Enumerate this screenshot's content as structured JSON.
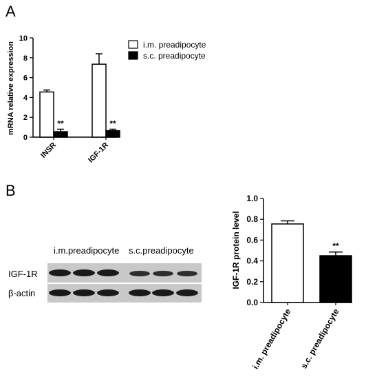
{
  "panels": {
    "a_label": "A",
    "b_label": "B"
  },
  "blot": {
    "lane_group_1": "i.m.preadipocyte",
    "lane_group_2": "s.c.preadipocyte",
    "row_1": "IGF-1R",
    "row_2": "β-actin"
  },
  "colors": {
    "im_fill": "#ffffff",
    "sc_fill": "#000000",
    "blot_bg": "#c8c8c8",
    "band": "#1a1a1a"
  },
  "chart_data": [
    {
      "type": "bar",
      "panel": "A",
      "ylabel": "mRNA relative expression",
      "xlabel": "",
      "ylim": [
        0,
        10
      ],
      "yticks": [
        "0",
        "2",
        "4",
        "6",
        "8",
        "10"
      ],
      "categories": [
        "INSR",
        "IGF-1R"
      ],
      "series": [
        {
          "name": "i.m. preadipocyte",
          "color": "#ffffff",
          "values": [
            4.55,
            7.35
          ],
          "error": [
            0.2,
            1.05
          ]
        },
        {
          "name": "s.c. preadipocyte",
          "color": "#000000",
          "values": [
            0.55,
            0.65
          ],
          "error": [
            0.25,
            0.15
          ]
        }
      ],
      "annotations": [
        {
          "category": "INSR",
          "series": 1,
          "text": "**"
        },
        {
          "category": "IGF-1R",
          "series": 1,
          "text": "**"
        }
      ],
      "legend": "top-right",
      "grid": false
    },
    {
      "type": "bar",
      "panel": "B",
      "ylabel": "IGF-1R protein level",
      "xlabel": "",
      "ylim": [
        0,
        1.0
      ],
      "yticks": [
        "0.0",
        "0.2",
        "0.4",
        "0.6",
        "0.8",
        "1.0"
      ],
      "categories": [
        "i.m. preadipocyte",
        "s.c. preadipocyte"
      ],
      "series": [
        {
          "values": [
            0.755,
            0.45
          ],
          "error": [
            0.03,
            0.035
          ],
          "colors": [
            "#ffffff",
            "#000000"
          ]
        }
      ],
      "annotations": [
        {
          "category": "s.c. preadipocyte",
          "series": 0,
          "text": "**"
        }
      ],
      "legend": "none",
      "grid": false
    }
  ]
}
